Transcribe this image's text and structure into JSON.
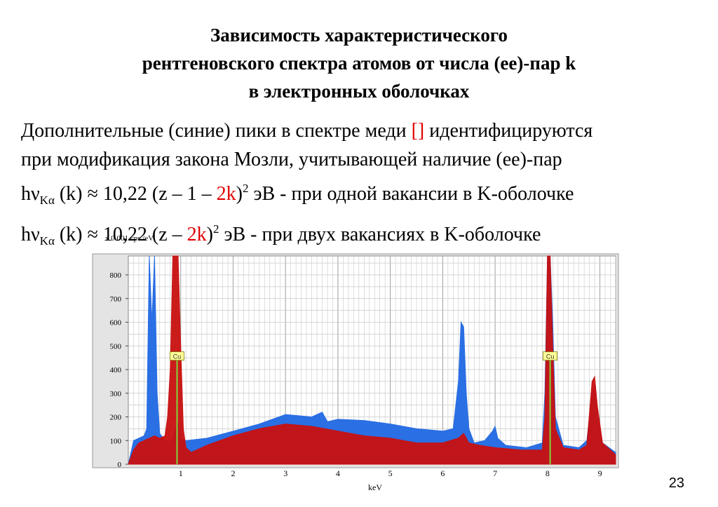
{
  "title": {
    "line1": "Зависимость характеристического",
    "line2": "рентгеновского спектра атомов от числа (ee)-пар k",
    "line3": "в электронных оболочках"
  },
  "text": {
    "line1_a": "Дополнительные (синие) пики в спектре меди ",
    "line1_ref": "[]",
    "line1_b": " идентифицируются",
    "line2": "при модификация закона Мозли, учитывающей наличие (ee)-пар",
    "f1_hv": "hν",
    "f1_sub": "Kα",
    "f1_a": " (k) ≈ 10,22 (z – 1 – ",
    "f1_red": "2k",
    "f1_b": ")",
    "f1_sup": "2",
    "f1_c": " эВ - при одной вакансии в K-оболочке",
    "f2_hv": "hν",
    "f2_sub": "Kα",
    "f2_a": " (k) ≈ 10,22 (z  – ",
    "f2_red": "2k",
    "f2_b": ")",
    "f2_sup": "2",
    "f2_c": " эВ  - при двух вакансиях в K-оболочке"
  },
  "page_number": "23",
  "colors": {
    "blue_series": "#2a6fe3",
    "red_series": "#c81010",
    "marker": "#7fd63a",
    "grid": "#c8c8c8",
    "formula_red": "#e00000"
  },
  "chart_data": {
    "type": "area",
    "title": "",
    "ylabel": "x  0.001 cps /eV",
    "xlabel": "keV",
    "xlim": [
      0,
      9.3
    ],
    "ylim": [
      0,
      880
    ],
    "x_ticks": [
      "1",
      "2",
      "3",
      "4",
      "5",
      "6",
      "7",
      "8",
      "9"
    ],
    "y_ticks": [
      "0",
      "100",
      "200",
      "300",
      "400",
      "500",
      "600",
      "700",
      "800"
    ],
    "grid": true,
    "markers": [
      {
        "label": "Cu",
        "x": 0.93
      },
      {
        "label": "Cu",
        "x": 8.05
      }
    ],
    "series": [
      {
        "color": "blue",
        "x": [
          0.0,
          0.1,
          0.2,
          0.3,
          0.35,
          0.4,
          0.45,
          0.5,
          0.55,
          0.6,
          0.7,
          0.8,
          0.85,
          0.9,
          0.95,
          1.0,
          1.1,
          1.5,
          2.0,
          2.5,
          3.0,
          3.5,
          3.7,
          3.8,
          4.0,
          4.5,
          5.0,
          5.5,
          6.0,
          6.2,
          6.3,
          6.35,
          6.4,
          6.45,
          6.5,
          6.6,
          6.8,
          6.95,
          7.0,
          7.05,
          7.2,
          7.6,
          7.9,
          7.95,
          8.0,
          8.05,
          8.1,
          8.15,
          8.3,
          8.6,
          8.75,
          8.85,
          8.9,
          8.95,
          9.05,
          9.3
        ],
        "values": [
          0,
          100,
          110,
          120,
          150,
          880,
          600,
          880,
          300,
          130,
          100,
          95,
          110,
          150,
          180,
          110,
          100,
          110,
          140,
          170,
          210,
          200,
          220,
          180,
          190,
          185,
          170,
          150,
          140,
          150,
          350,
          600,
          580,
          300,
          150,
          90,
          100,
          140,
          160,
          110,
          80,
          70,
          90,
          300,
          880,
          880,
          600,
          200,
          80,
          70,
          100,
          300,
          330,
          200,
          90,
          50
        ]
      },
      {
        "color": "red",
        "x": [
          0.0,
          0.1,
          0.2,
          0.3,
          0.4,
          0.5,
          0.6,
          0.7,
          0.75,
          0.8,
          0.85,
          0.9,
          0.95,
          1.0,
          1.05,
          1.1,
          1.2,
          1.5,
          2.0,
          2.5,
          3.0,
          3.5,
          4.0,
          4.5,
          5.0,
          5.5,
          6.0,
          6.3,
          6.4,
          6.5,
          6.7,
          7.0,
          7.5,
          7.9,
          7.95,
          8.0,
          8.05,
          8.1,
          8.15,
          8.3,
          8.6,
          8.75,
          8.85,
          8.9,
          8.95,
          9.05,
          9.3
        ],
        "values": [
          0,
          60,
          90,
          100,
          110,
          120,
          110,
          120,
          200,
          400,
          880,
          880,
          880,
          500,
          150,
          70,
          50,
          80,
          120,
          150,
          170,
          160,
          140,
          120,
          110,
          90,
          90,
          110,
          130,
          90,
          80,
          70,
          60,
          60,
          200,
          880,
          880,
          500,
          150,
          70,
          60,
          80,
          350,
          370,
          250,
          90,
          40
        ]
      }
    ]
  }
}
